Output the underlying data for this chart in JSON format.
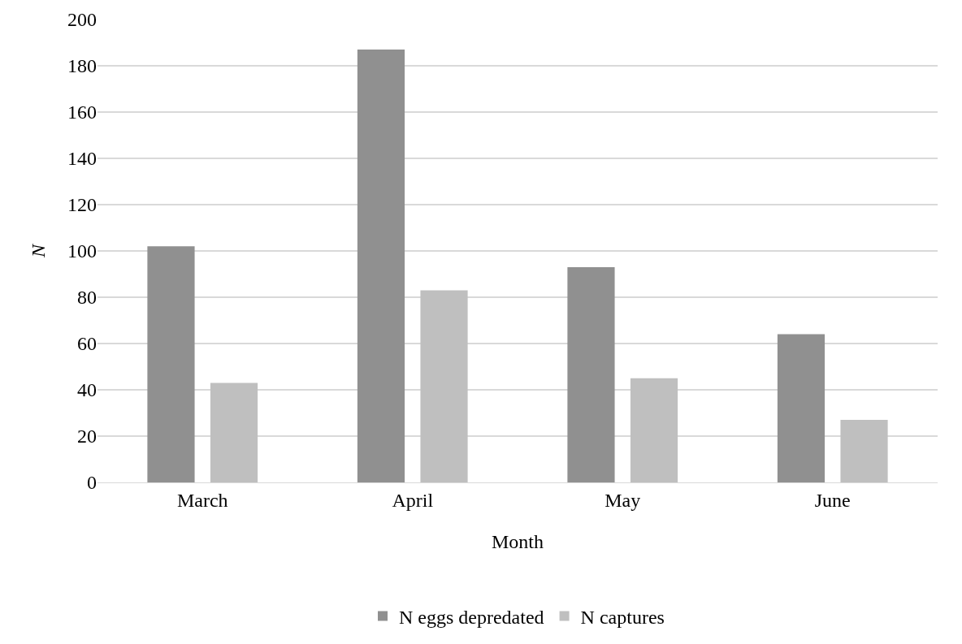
{
  "chart_data": {
    "type": "bar",
    "xlabel": "Month",
    "ylabel": "N",
    "categories": [
      "March",
      "April",
      "May",
      "June"
    ],
    "series": [
      {
        "name": "N eggs depredated",
        "color": "#909090",
        "values": [
          102,
          187,
          93,
          64
        ]
      },
      {
        "name": "N captures",
        "color": "#bfbfbf",
        "values": [
          43,
          83,
          45,
          27
        ]
      }
    ],
    "ylim": [
      0,
      200
    ],
    "yticks": [
      0,
      20,
      40,
      60,
      80,
      100,
      120,
      140,
      160,
      180,
      200
    ],
    "grid": "y",
    "legend": "bottom"
  }
}
